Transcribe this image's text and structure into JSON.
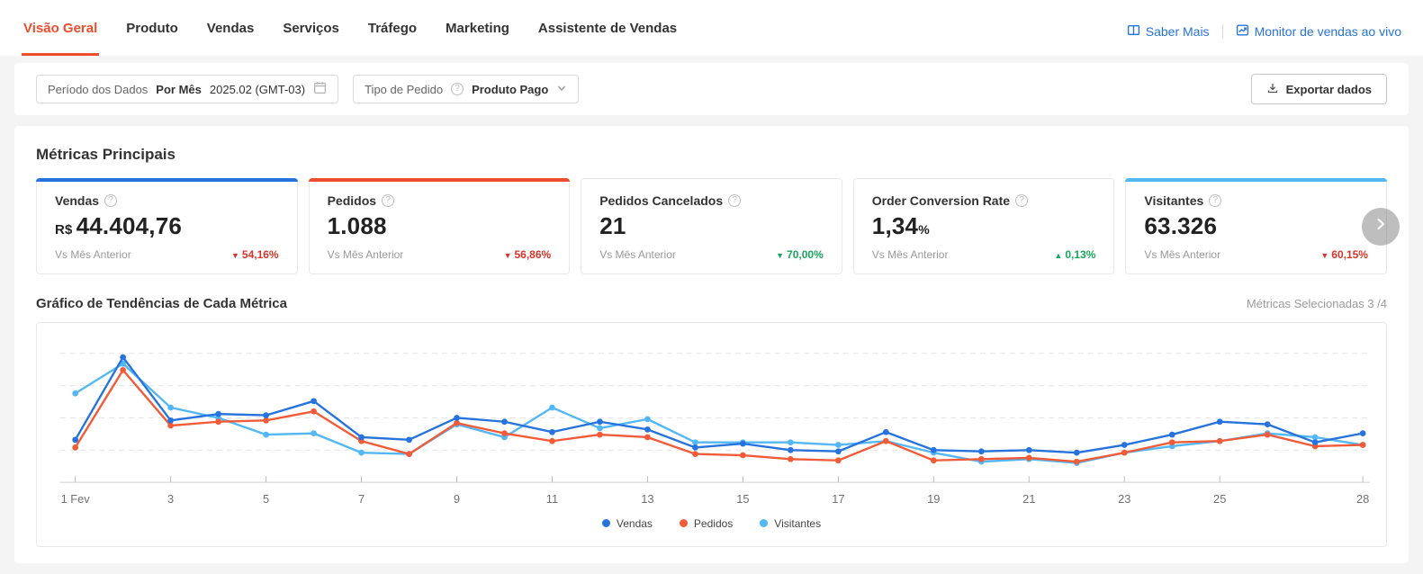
{
  "colors": {
    "accent_orange": "#ee4d2d",
    "link_blue": "#2673dd",
    "negative_red": "#d6342b",
    "positive_green": "#18a55a"
  },
  "nav": {
    "tabs": [
      {
        "label": "Visão Geral"
      },
      {
        "label": "Produto"
      },
      {
        "label": "Vendas"
      },
      {
        "label": "Serviços"
      },
      {
        "label": "Tráfego"
      },
      {
        "label": "Marketing"
      },
      {
        "label": "Assistente de Vendas"
      }
    ],
    "active_index": 0,
    "links": [
      {
        "label": "Saber Mais"
      },
      {
        "label": "Monitor de vendas ao vivo"
      }
    ]
  },
  "filters": {
    "period": {
      "label": "Período dos Dados",
      "mode": "Por Mês",
      "value": "2025.02 (GMT-03)"
    },
    "order_type": {
      "label": "Tipo de Pedido",
      "value": "Produto Pago"
    },
    "export_label": "Exportar dados"
  },
  "metrics": {
    "section_title": "Métricas Principais",
    "compare_label": "Vs Mês Anterior",
    "cards": [
      {
        "title": "Vendas",
        "prefix": "R$",
        "value": "44.404,76",
        "suffix": "",
        "delta_arrow": "▼",
        "delta": "54,16%",
        "delta_color": "#d6342b",
        "accent": "#2673dd",
        "selected": true
      },
      {
        "title": "Pedidos",
        "prefix": "",
        "value": "1.088",
        "suffix": "",
        "delta_arrow": "▼",
        "delta": "56,86%",
        "delta_color": "#d6342b",
        "accent": "#ee4d2d",
        "selected": true
      },
      {
        "title": "Pedidos Cancelados",
        "prefix": "",
        "value": "21",
        "suffix": "",
        "delta_arrow": "▼",
        "delta": "70,00%",
        "delta_color": "#18a55a",
        "accent": null,
        "selected": false
      },
      {
        "title": "Order Conversion Rate",
        "prefix": "",
        "value": "1,34",
        "suffix": "%",
        "delta_arrow": "▲",
        "delta": "0,13%",
        "delta_color": "#18a55a",
        "accent": null,
        "selected": false
      },
      {
        "title": "Visitantes",
        "prefix": "",
        "value": "63.326",
        "suffix": "",
        "delta_arrow": "▼",
        "delta": "60,15%",
        "delta_color": "#d6342b",
        "accent": "#53b7f4",
        "selected": true
      }
    ]
  },
  "trend": {
    "title": "Gráfico de Tendências de Cada Métrica",
    "selected_label": "Métricas Selecionadas 3 /4"
  },
  "chart_data": {
    "type": "line",
    "title": "Gráfico de Tendências de Cada Métrica",
    "xlabel": "",
    "ylabel": "",
    "x_days": [
      1,
      2,
      3,
      4,
      5,
      6,
      7,
      8,
      9,
      10,
      11,
      12,
      13,
      14,
      15,
      16,
      17,
      18,
      19,
      20,
      21,
      22,
      23,
      24,
      25,
      26,
      27,
      28
    ],
    "x_tick_days": [
      1,
      3,
      5,
      7,
      9,
      11,
      13,
      15,
      17,
      19,
      21,
      23,
      25,
      28
    ],
    "x_tick_labels": [
      "1 Fev",
      "3",
      "5",
      "7",
      "9",
      "11",
      "13",
      "15",
      "17",
      "19",
      "21",
      "23",
      "25",
      "28"
    ],
    "ylim": [
      0,
      105
    ],
    "y_gridlines": [
      25,
      50,
      75,
      100
    ],
    "y_scale_note": "y axis unlabeled in UI; series values are relative estimates (0-100) read from gridlines",
    "grid": "dashed horizontal",
    "legend_position": "bottom",
    "series": [
      {
        "name": "Vendas",
        "color": "#2673dd",
        "values": [
          33,
          97,
          48,
          53,
          52,
          63,
          35,
          33,
          50,
          47,
          39,
          47,
          41,
          27,
          30,
          25,
          24,
          39,
          25,
          24,
          25,
          23,
          29,
          37,
          47,
          45,
          31,
          38
        ]
      },
      {
        "name": "Pedidos",
        "color": "#f25b38",
        "values": [
          27,
          87,
          44,
          47,
          48,
          55,
          32,
          22,
          46,
          38,
          32,
          37,
          35,
          22,
          21,
          18,
          17,
          32,
          17,
          18,
          19,
          16,
          23,
          31,
          32,
          37,
          28,
          29
        ]
      },
      {
        "name": "Visitantes",
        "color": "#53b7f4",
        "values": [
          69,
          92,
          58,
          50,
          37,
          38,
          23,
          22,
          45,
          35,
          58,
          42,
          49,
          31,
          31,
          31,
          29,
          32,
          23,
          16,
          18,
          15,
          23,
          28,
          32,
          38,
          35,
          29
        ]
      }
    ]
  }
}
